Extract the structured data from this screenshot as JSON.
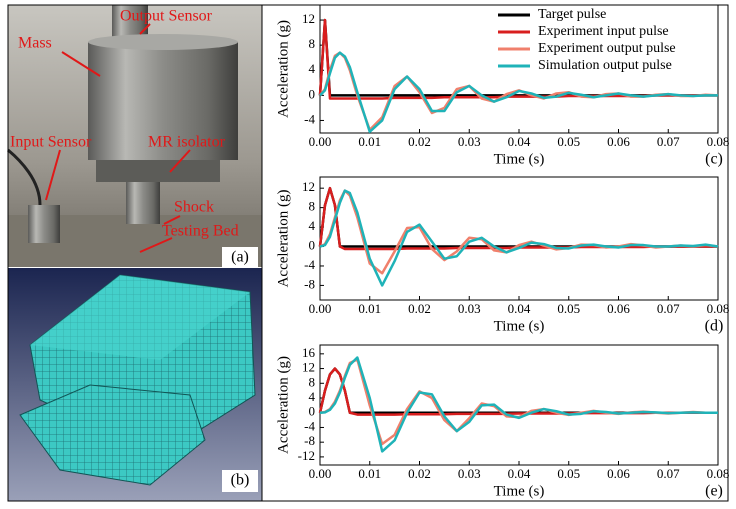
{
  "photo_panel": {
    "labels": {
      "output_sensor": "Output  Sensor",
      "mass": "Mass",
      "input_sensor": "Input Sensor",
      "mr_isolator": "MR isolator",
      "shock": "Shock",
      "testing_bed": "Testing Bed"
    },
    "panel_label": "(a)"
  },
  "mesh_panel": {
    "panel_label": "(b)"
  },
  "chart_data": [
    {
      "type": "line",
      "xlabel": "Time (s)",
      "ylabel": "Acceleration (g)",
      "panel_label": "(c)",
      "legend": "upper right",
      "grid": false,
      "xlim": [
        0,
        0.08
      ],
      "ylim": [
        -6,
        14.4
      ],
      "xticks": [
        {
          "value": 0,
          "label": "0.00"
        },
        0.01,
        0.02,
        0.03,
        0.04,
        0.05,
        0.06,
        0.07,
        0.08
      ],
      "yticks": [
        -4,
        0,
        4,
        8,
        12
      ],
      "x": [
        0,
        0.001,
        0.002,
        0.003,
        0.004,
        0.005,
        0.006,
        0.0075,
        0.01,
        0.0125,
        0.015,
        0.0175,
        0.02,
        0.0225,
        0.025,
        0.0275,
        0.03,
        0.0325,
        0.035,
        0.0375,
        0.04,
        0.0425,
        0.045,
        0.0475,
        0.05,
        0.0525,
        0.055,
        0.0575,
        0.06,
        0.0625,
        0.065,
        0.0675,
        0.07,
        0.0725,
        0.075,
        0.0775,
        0.08
      ],
      "series": [
        {
          "name": "Target pulse",
          "color": "#000000",
          "values": [
            0,
            12,
            0,
            0,
            0,
            0,
            0,
            0,
            0,
            0,
            0,
            0,
            0,
            0,
            0,
            0,
            0,
            0,
            0,
            0,
            0,
            0,
            0,
            0,
            0,
            0,
            0,
            0,
            0,
            0,
            0,
            0,
            0,
            0,
            0,
            0,
            0
          ]
        },
        {
          "name": "Experiment input pulse",
          "color": "#d81e1e",
          "values": [
            0,
            12,
            -0.5,
            -0.5,
            -0.5,
            -0.5,
            -0.5,
            -0.5,
            -0.5,
            -0.5,
            -0.4,
            -0.4,
            -0.4,
            -0.4,
            -0.3,
            -0.3,
            -0.3,
            -0.3,
            -0.3,
            -0.2,
            -0.2,
            -0.2,
            -0.2,
            -0.2,
            -0.1,
            -0.1,
            -0.1,
            -0.1,
            -0.1,
            -0.1,
            -0.1,
            0,
            0,
            0,
            0,
            0,
            0
          ]
        },
        {
          "name": "Experiment output pulse",
          "color": "#f0806c",
          "values": [
            0,
            1,
            4,
            6.3,
            6.8,
            6,
            4,
            0,
            -5.5,
            -3.5,
            1.5,
            3,
            0.5,
            -2.8,
            -2,
            1,
            1.5,
            -0.5,
            -1,
            0.2,
            0.8,
            0,
            -0.5,
            0.3,
            0.5,
            -0.2,
            -0.3,
            0.2,
            0.3,
            -0.2,
            -0.2,
            0.1,
            0.2,
            -0.1,
            -0.1,
            0.1,
            0
          ]
        },
        {
          "name": "Simulation output pulse",
          "color": "#1fb3b8",
          "values": [
            0,
            0.8,
            3.5,
            6,
            6.8,
            6.2,
            4.5,
            0.5,
            -5.8,
            -4,
            1,
            3,
            1,
            -2.5,
            -2.5,
            0.5,
            1.5,
            0,
            -1,
            -0.3,
            0.7,
            0.3,
            -0.4,
            -0.2,
            0.4,
            0.1,
            -0.3,
            0,
            0.3,
            0,
            -0.2,
            0,
            0.2,
            0,
            -0.1,
            0,
            0
          ]
        }
      ]
    },
    {
      "type": "line",
      "xlabel": "Time (s)",
      "ylabel": "Acceleration (g)",
      "panel_label": "(d)",
      "grid": false,
      "xlim": [
        0,
        0.08
      ],
      "ylim": [
        -11,
        14.3
      ],
      "xticks": [
        {
          "value": 0,
          "label": "0.00"
        },
        0.01,
        0.02,
        0.03,
        0.04,
        0.05,
        0.06,
        0.07,
        0.08
      ],
      "yticks": [
        -8,
        -4,
        0,
        4,
        8,
        12
      ],
      "x": [
        0,
        0.001,
        0.002,
        0.003,
        0.004,
        0.005,
        0.006,
        0.0075,
        0.01,
        0.0125,
        0.015,
        0.0175,
        0.02,
        0.0225,
        0.025,
        0.0275,
        0.03,
        0.0325,
        0.035,
        0.0375,
        0.04,
        0.0425,
        0.045,
        0.0475,
        0.05,
        0.0525,
        0.055,
        0.0575,
        0.06,
        0.0625,
        0.065,
        0.0675,
        0.07,
        0.0725,
        0.075,
        0.0775,
        0.08
      ],
      "series": [
        {
          "color": "#000000",
          "values": [
            0,
            8.5,
            12,
            8.5,
            0,
            0,
            0,
            0,
            0,
            0,
            0,
            0,
            0,
            0,
            0,
            0,
            0,
            0,
            0,
            0,
            0,
            0,
            0,
            0,
            0,
            0,
            0,
            0,
            0,
            0,
            0,
            0,
            0,
            0,
            0,
            0,
            0
          ]
        },
        {
          "color": "#d81e1e",
          "values": [
            0,
            8.5,
            12,
            8.5,
            0,
            -0.5,
            -0.5,
            -0.5,
            -0.5,
            -0.5,
            -0.5,
            -0.4,
            -0.4,
            -0.4,
            -0.4,
            -0.3,
            -0.3,
            -0.3,
            -0.3,
            -0.3,
            -0.2,
            -0.2,
            -0.2,
            -0.2,
            -0.2,
            -0.1,
            -0.1,
            -0.1,
            -0.1,
            -0.1,
            -0.1,
            0,
            0,
            0,
            0,
            0,
            0
          ]
        },
        {
          "color": "#f0806c",
          "values": [
            0,
            0.5,
            2.5,
            6,
            9.5,
            11.5,
            10.5,
            6,
            -3.5,
            -5.5,
            -1,
            3.8,
            4,
            -0.5,
            -2.8,
            -1,
            1.8,
            1.5,
            -0.8,
            -1.2,
            0.3,
            1,
            0.2,
            -0.6,
            -0.3,
            0.4,
            0.3,
            -0.2,
            0,
            0.5,
            0.2,
            -0.2,
            0,
            0.2,
            0,
            0.3,
            0
          ]
        },
        {
          "color": "#1fb3b8",
          "values": [
            0,
            0.3,
            2,
            5.5,
            9,
            11.5,
            11,
            7,
            -2.5,
            -8,
            -3,
            3,
            4.5,
            1,
            -2.5,
            -2,
            1,
            1.8,
            0,
            -1.2,
            -0.3,
            0.8,
            0.5,
            -0.3,
            -0.4,
            0.2,
            0.4,
            0,
            -0.2,
            0.3,
            0.3,
            0,
            0,
            0.2,
            0.1,
            0.4,
            0
          ]
        }
      ]
    },
    {
      "type": "line",
      "xlabel": "Time (s)",
      "ylabel": "Acceleration (g)",
      "panel_label": "(e)",
      "grid": false,
      "xlim": [
        0,
        0.08
      ],
      "ylim": [
        -14.2,
        18.4
      ],
      "xticks": [
        {
          "value": 0,
          "label": "0.00"
        },
        0.01,
        0.02,
        0.03,
        0.04,
        0.05,
        0.06,
        0.07,
        0.08
      ],
      "yticks": [
        -12,
        -8,
        -4,
        0,
        4,
        8,
        12,
        16
      ],
      "x": [
        0,
        0.001,
        0.002,
        0.003,
        0.004,
        0.005,
        0.006,
        0.0075,
        0.01,
        0.0125,
        0.015,
        0.0175,
        0.02,
        0.0225,
        0.025,
        0.0275,
        0.03,
        0.0325,
        0.035,
        0.0375,
        0.04,
        0.0425,
        0.045,
        0.0475,
        0.05,
        0.0525,
        0.055,
        0.0575,
        0.06,
        0.0625,
        0.065,
        0.0675,
        0.07,
        0.0725,
        0.075,
        0.0775,
        0.08
      ],
      "series": [
        {
          "color": "#000000",
          "values": [
            0,
            6,
            10.4,
            12,
            10.4,
            6,
            0,
            0,
            0,
            0,
            0,
            0,
            0,
            0,
            0,
            0,
            0,
            0,
            0,
            0,
            0,
            0,
            0,
            0,
            0,
            0,
            0,
            0,
            0,
            0,
            0,
            0,
            0,
            0,
            0,
            0,
            0
          ]
        },
        {
          "color": "#d81e1e",
          "values": [
            0,
            6,
            10.4,
            12,
            10.4,
            6,
            0,
            -0.5,
            -0.5,
            -0.5,
            -0.5,
            -0.4,
            -0.4,
            -0.4,
            -0.4,
            -0.3,
            -0.3,
            -0.3,
            -0.3,
            -0.3,
            -0.2,
            -0.2,
            -0.2,
            -0.2,
            -0.2,
            -0.1,
            -0.1,
            -0.1,
            -0.1,
            -0.1,
            -0.1,
            0,
            0,
            0,
            0,
            0,
            0
          ]
        },
        {
          "color": "#f0806c",
          "values": [
            0,
            0.2,
            1,
            3,
            6,
            10,
            13.5,
            14.5,
            2,
            -8.5,
            -6,
            1,
            5.8,
            4,
            -2,
            -5,
            -1.5,
            2.5,
            1.8,
            -1,
            -1.2,
            0.5,
            1,
            0,
            -0.6,
            0,
            0.5,
            0,
            -0.3,
            0.1,
            0.3,
            0,
            -0.2,
            0,
            0.2,
            0,
            0
          ]
        },
        {
          "color": "#1fb3b8",
          "values": [
            0,
            0.1,
            0.8,
            2.5,
            5.5,
            9.5,
            13,
            15,
            4,
            -10.5,
            -7.5,
            0,
            5.5,
            5,
            -1,
            -5,
            -2.5,
            2,
            2.2,
            -0.5,
            -1.4,
            0,
            1,
            0.4,
            -0.5,
            -0.3,
            0.4,
            0.2,
            -0.2,
            0,
            0.2,
            0.1,
            -0.1,
            0,
            0.1,
            0,
            0
          ]
        }
      ]
    }
  ]
}
